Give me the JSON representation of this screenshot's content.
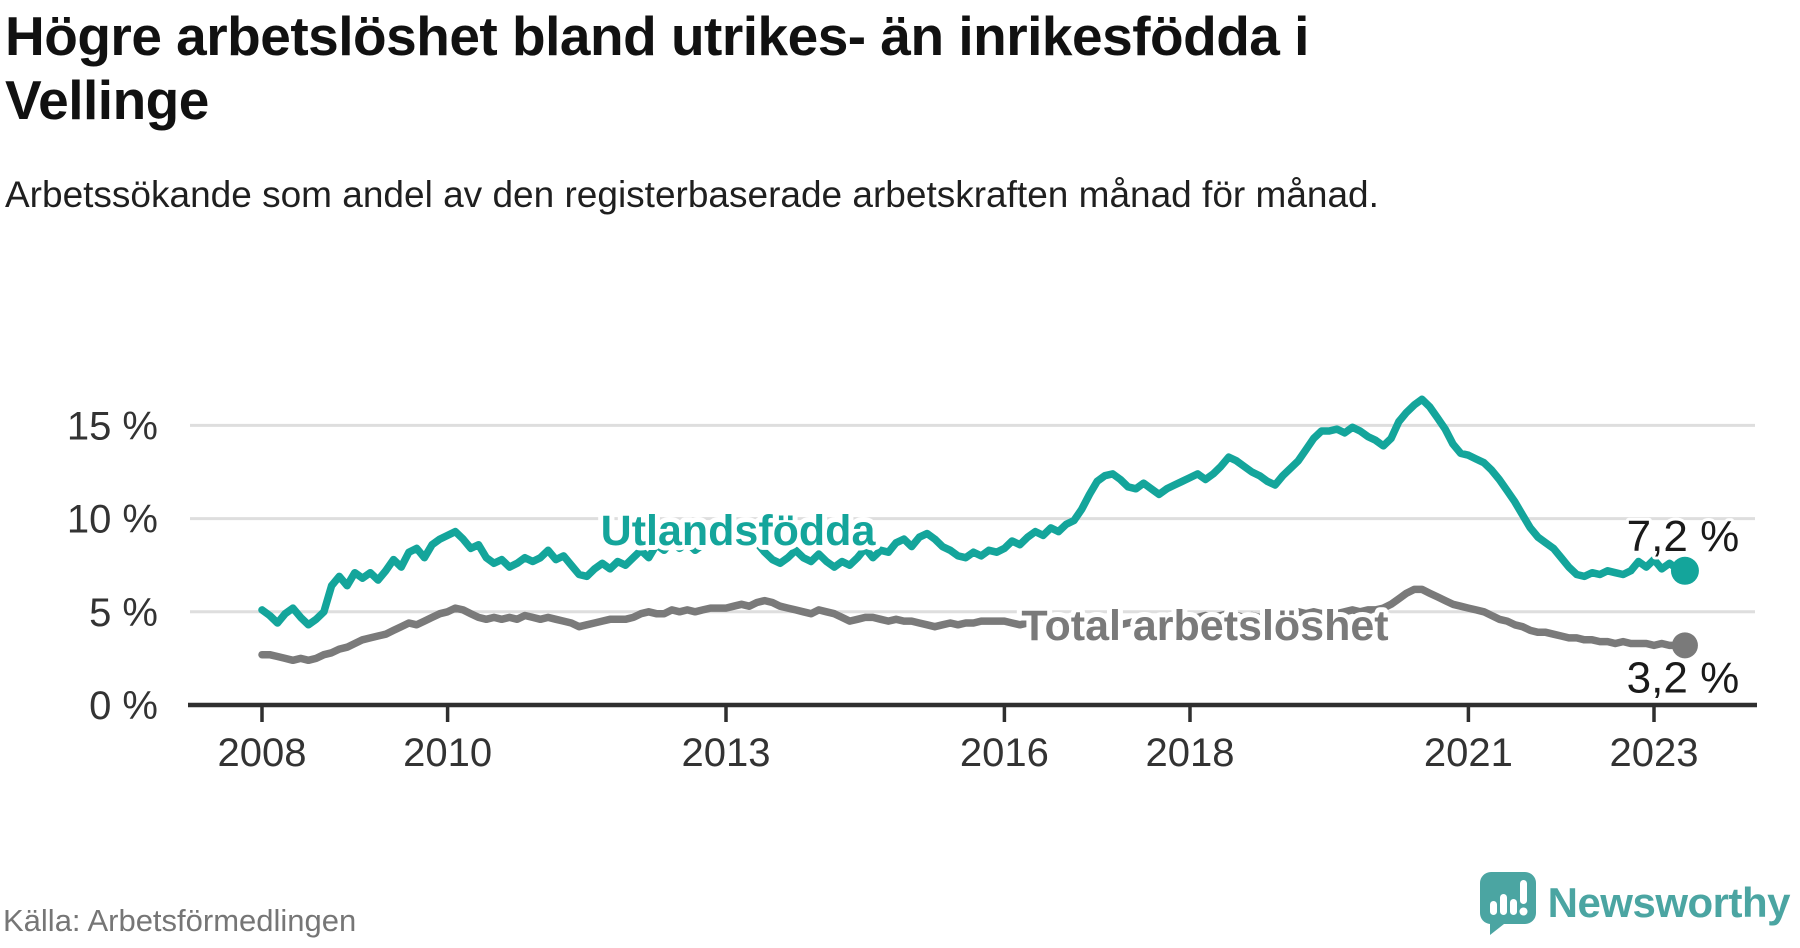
{
  "header": {
    "title": "Högre arbetslöshet bland utrikes- än inrikesfödda i Vellinge",
    "subtitle": "Arbetssökande som andel av den registerbaserade arbetskraften månad för månad."
  },
  "footer": {
    "source": "Källa: Arbetsförmedlingen",
    "logo_text": "Newsworthy"
  },
  "colors": {
    "series_foreign": "#14a59b",
    "series_total": "#7a7a7a",
    "value_label": "#1a1a1a",
    "axis": "#2f2f2f",
    "tick_label": "#333333",
    "gridline": "#dedede",
    "logo_teal": "#4ba5a2"
  },
  "chart_data": {
    "type": "line",
    "title": "Högre arbetslöshet bland utrikes- än inrikesfödda i Vellinge",
    "subtitle": "Arbetssökande som andel av den registerbaserade arbetskraften månad för månad.",
    "source": "Källa: Arbetsförmedlingen",
    "x_unit": "month",
    "x_start_year": 2008,
    "x_end_label": "2023 (maj)",
    "x_ticks": [
      2008,
      2010,
      2013,
      2016,
      2018,
      2021,
      2023
    ],
    "y_ticks": [
      {
        "value": 0,
        "label": "0 %"
      },
      {
        "value": 5,
        "label": "5 %"
      },
      {
        "value": 10,
        "label": "10 %"
      },
      {
        "value": 15,
        "label": "15 %"
      }
    ],
    "ylim": [
      0,
      17.5
    ],
    "grid": true,
    "legend_position": "inline-labels",
    "series": [
      {
        "name": "Utlandsfödda",
        "color": "#14a59b",
        "end_label": "7,2 %",
        "end_value": 7.2,
        "values": [
          5.1,
          4.8,
          4.4,
          4.9,
          5.2,
          4.7,
          4.3,
          4.6,
          5.0,
          6.4,
          6.9,
          6.4,
          7.1,
          6.8,
          7.1,
          6.7,
          7.2,
          7.8,
          7.4,
          8.2,
          8.4,
          7.9,
          8.6,
          8.9,
          9.1,
          9.3,
          8.9,
          8.4,
          8.6,
          7.9,
          7.6,
          7.8,
          7.4,
          7.6,
          7.9,
          7.7,
          7.9,
          8.3,
          7.8,
          8.0,
          7.5,
          7.0,
          6.9,
          7.3,
          7.6,
          7.3,
          7.7,
          7.5,
          7.9,
          8.3,
          7.9,
          8.6,
          8.3,
          8.8,
          8.4,
          8.7,
          8.3,
          8.6,
          9.0,
          8.8,
          9.1,
          9.3,
          9.0,
          9.2,
          8.7,
          8.2,
          7.8,
          7.6,
          7.9,
          8.3,
          7.9,
          7.7,
          8.1,
          7.7,
          7.4,
          7.7,
          7.5,
          7.9,
          8.4,
          7.9,
          8.3,
          8.2,
          8.7,
          8.9,
          8.5,
          9.0,
          9.2,
          8.9,
          8.5,
          8.3,
          8.0,
          7.9,
          8.2,
          8.0,
          8.3,
          8.2,
          8.4,
          8.8,
          8.6,
          9.0,
          9.3,
          9.1,
          9.5,
          9.3,
          9.7,
          9.9,
          10.5,
          11.3,
          12.0,
          12.3,
          12.4,
          12.1,
          11.7,
          11.6,
          11.9,
          11.6,
          11.3,
          11.6,
          11.8,
          12.0,
          12.2,
          12.4,
          12.1,
          12.4,
          12.8,
          13.3,
          13.1,
          12.8,
          12.5,
          12.3,
          12.0,
          11.8,
          12.3,
          12.7,
          13.1,
          13.7,
          14.3,
          14.7,
          14.7,
          14.8,
          14.6,
          14.9,
          14.7,
          14.4,
          14.2,
          13.9,
          14.3,
          15.2,
          15.7,
          16.1,
          16.4,
          16.0,
          15.4,
          14.8,
          14.0,
          13.5,
          13.4,
          13.2,
          13.0,
          12.6,
          12.1,
          11.5,
          10.9,
          10.2,
          9.5,
          9.0,
          8.7,
          8.4,
          7.9,
          7.4,
          7.0,
          6.9,
          7.1,
          7.0,
          7.2,
          7.1,
          7.0,
          7.2,
          7.7,
          7.4,
          7.8,
          7.3,
          7.6,
          7.3,
          7.2
        ]
      },
      {
        "name": "Total arbetslöshet",
        "color": "#7a7a7a",
        "end_label": "3,2 %",
        "end_value": 3.2,
        "values": [
          2.7,
          2.7,
          2.6,
          2.5,
          2.4,
          2.5,
          2.4,
          2.5,
          2.7,
          2.8,
          3.0,
          3.1,
          3.3,
          3.5,
          3.6,
          3.7,
          3.8,
          4.0,
          4.2,
          4.4,
          4.3,
          4.5,
          4.7,
          4.9,
          5.0,
          5.2,
          5.1,
          4.9,
          4.7,
          4.6,
          4.7,
          4.6,
          4.7,
          4.6,
          4.8,
          4.7,
          4.6,
          4.7,
          4.6,
          4.5,
          4.4,
          4.2,
          4.3,
          4.4,
          4.5,
          4.6,
          4.6,
          4.6,
          4.7,
          4.9,
          5.0,
          4.9,
          4.9,
          5.1,
          5.0,
          5.1,
          5.0,
          5.1,
          5.2,
          5.2,
          5.2,
          5.3,
          5.4,
          5.3,
          5.5,
          5.6,
          5.5,
          5.3,
          5.2,
          5.1,
          5.0,
          4.9,
          5.1,
          5.0,
          4.9,
          4.7,
          4.5,
          4.6,
          4.7,
          4.7,
          4.6,
          4.5,
          4.6,
          4.5,
          4.5,
          4.4,
          4.3,
          4.2,
          4.3,
          4.4,
          4.3,
          4.4,
          4.4,
          4.5,
          4.5,
          4.5,
          4.5,
          4.4,
          4.3,
          4.4,
          4.5,
          4.4,
          4.3,
          4.4,
          4.5,
          4.4,
          4.5,
          4.6,
          4.5,
          4.4,
          4.2,
          4.3,
          4.4,
          4.5,
          4.4,
          4.5,
          4.6,
          4.5,
          4.6,
          4.7,
          4.6,
          4.7,
          4.8,
          4.7,
          4.8,
          4.9,
          4.8,
          4.7,
          4.8,
          4.7,
          4.8,
          4.9,
          4.8,
          4.9,
          5.0,
          4.9,
          5.0,
          4.9,
          5.0,
          4.9,
          5.0,
          5.1,
          5.0,
          5.1,
          5.1,
          5.2,
          5.4,
          5.7,
          6.0,
          6.2,
          6.2,
          6.0,
          5.8,
          5.6,
          5.4,
          5.3,
          5.2,
          5.1,
          5.0,
          4.8,
          4.6,
          4.5,
          4.3,
          4.2,
          4.0,
          3.9,
          3.9,
          3.8,
          3.7,
          3.6,
          3.6,
          3.5,
          3.5,
          3.4,
          3.4,
          3.3,
          3.4,
          3.3,
          3.3,
          3.3,
          3.2,
          3.3,
          3.2,
          3.2,
          3.2
        ]
      }
    ]
  }
}
